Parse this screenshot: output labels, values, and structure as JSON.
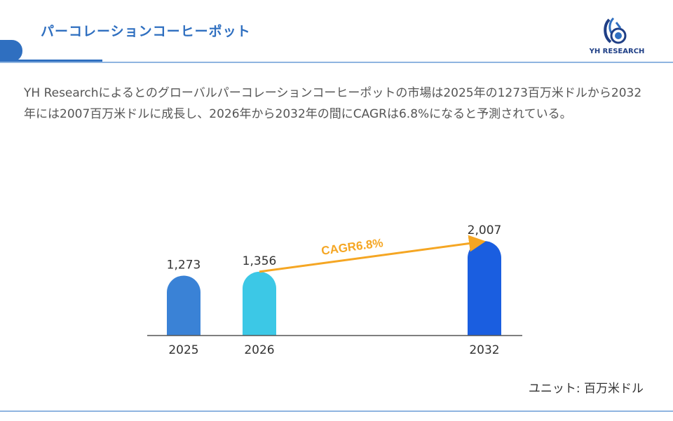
{
  "header": {
    "title": "パーコレーションコーヒーポット",
    "logo_text": "YH RESEARCH"
  },
  "description": "YH Researchによるとのグローバルパーコレーションコーヒーポットの市場は2025年の1273百万米ドルから2032年には2007百万米ドルに成長し、2026年から2032年の間にCAGRは6.8%になると予測されている。",
  "unit_label": "ユニット: 百万米ドル",
  "colors": {
    "accent": "#2f6fc0",
    "bar_2025": "#3a82d6",
    "bar_2026": "#3cc8e6",
    "bar_2032": "#1a5ee0",
    "cagr_arrow": "#f5a623"
  },
  "chart_data": {
    "type": "bar",
    "categories": [
      "2025",
      "2026",
      "2032"
    ],
    "values": [
      1273,
      1356,
      2007
    ],
    "value_labels": [
      "1,273",
      "1,356",
      "2,007"
    ],
    "annotation": "CAGR6.8%",
    "ylim": [
      0,
      2200
    ],
    "grid": false
  }
}
